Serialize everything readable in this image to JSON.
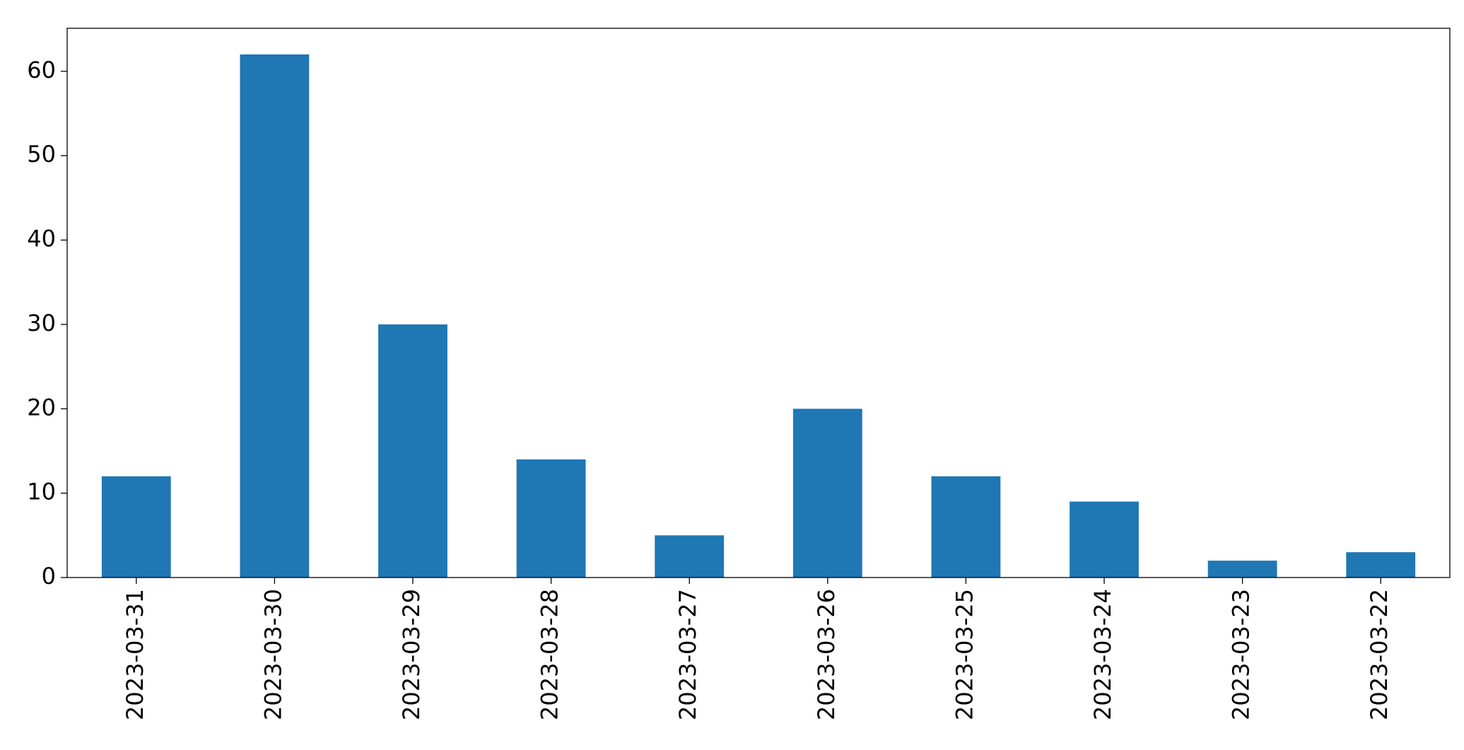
{
  "chart_data": {
    "type": "bar",
    "categories": [
      "2023-03-31",
      "2023-03-30",
      "2023-03-29",
      "2023-03-28",
      "2023-03-27",
      "2023-03-26",
      "2023-03-25",
      "2023-03-24",
      "2023-03-23",
      "2023-03-22"
    ],
    "values": [
      12,
      62,
      30,
      14,
      5,
      20,
      12,
      9,
      2,
      3
    ],
    "color": "#1f77b4",
    "ylim": [
      0,
      65.1
    ],
    "yticks": [
      0,
      10,
      20,
      30,
      40,
      50,
      60
    ],
    "grid": false
  }
}
